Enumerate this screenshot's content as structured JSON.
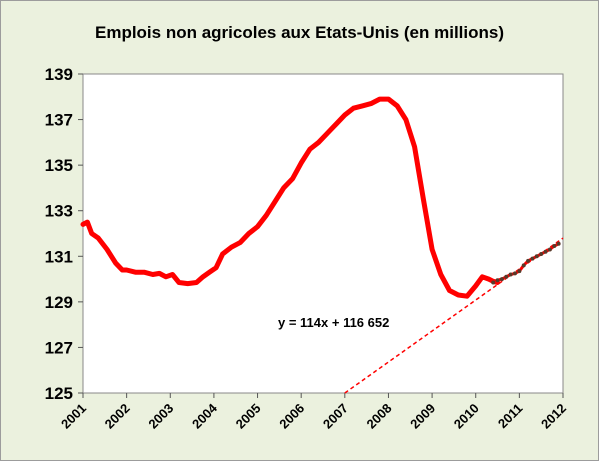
{
  "chart_data": {
    "type": "line",
    "title": "Emplois non agricoles aux Etats-Unis (en millions)",
    "xlabel": "",
    "ylabel": "",
    "xlim": [
      2001,
      2012
    ],
    "ylim": [
      125,
      139
    ],
    "grid": "off",
    "y_ticks": [
      "125",
      "127",
      "129",
      "131",
      "133",
      "135",
      "137",
      "139"
    ],
    "x_ticks": [
      "2001",
      "2002",
      "2003",
      "2004",
      "2005",
      "2006",
      "2007",
      "2008",
      "2009",
      "2010",
      "2011",
      "2012"
    ],
    "annotations": [
      "y = 114x + 116 652"
    ],
    "colors": {
      "series": "#ff0000",
      "points": "#5a3a2a",
      "trend": "#ff0000",
      "plot_bg": "#ffffff",
      "frame_bg": "#ebf1de"
    },
    "series": [
      {
        "style": "solid",
        "x": [
          2001.0,
          2001.1,
          2001.2,
          2001.35,
          2001.55,
          2001.75,
          2001.9,
          2002.0,
          2002.2,
          2002.4,
          2002.6,
          2002.75,
          2002.9,
          2003.05,
          2003.2,
          2003.4,
          2003.6,
          2003.75,
          2003.9,
          2004.05,
          2004.2,
          2004.4,
          2004.6,
          2004.8,
          2005.0,
          2005.2,
          2005.4,
          2005.6,
          2005.8,
          2006.0,
          2006.2,
          2006.4,
          2006.6,
          2006.8,
          2007.0,
          2007.2,
          2007.4,
          2007.6,
          2007.8,
          2008.0,
          2008.2,
          2008.4,
          2008.6,
          2008.8,
          2009.0,
          2009.2,
          2009.4,
          2009.6,
          2009.8,
          2010.0,
          2010.15,
          2010.3,
          2010.4,
          2010.5
        ],
        "values": [
          132.4,
          132.5,
          132.0,
          131.8,
          131.3,
          130.7,
          130.4,
          130.4,
          130.3,
          130.3,
          130.2,
          130.25,
          130.1,
          130.2,
          129.85,
          129.8,
          129.85,
          130.1,
          130.3,
          130.5,
          131.1,
          131.4,
          131.6,
          132.0,
          132.3,
          132.8,
          133.4,
          134.0,
          134.4,
          135.1,
          135.7,
          136.0,
          136.4,
          136.8,
          137.2,
          137.5,
          137.6,
          137.7,
          137.9,
          137.9,
          137.6,
          137.0,
          135.8,
          133.5,
          131.3,
          130.2,
          129.5,
          129.3,
          129.25,
          129.7,
          130.1,
          130.0,
          129.9,
          129.85
        ]
      },
      {
        "style": "markers",
        "x": [
          2010.4,
          2010.5,
          2010.6,
          2010.7,
          2010.8,
          2010.9,
          2011.0,
          2011.1,
          2011.2,
          2011.3,
          2011.4,
          2011.5,
          2011.6,
          2011.7,
          2011.8,
          2011.9
        ],
        "values": [
          129.85,
          129.95,
          130.0,
          130.1,
          130.2,
          130.25,
          130.35,
          130.6,
          130.8,
          130.9,
          131.0,
          131.1,
          131.2,
          131.3,
          131.45,
          131.55
        ]
      },
      {
        "style": "dashed-trend",
        "x": [
          2007.0,
          2012.0
        ],
        "values": [
          125.0,
          131.8
        ]
      }
    ]
  }
}
